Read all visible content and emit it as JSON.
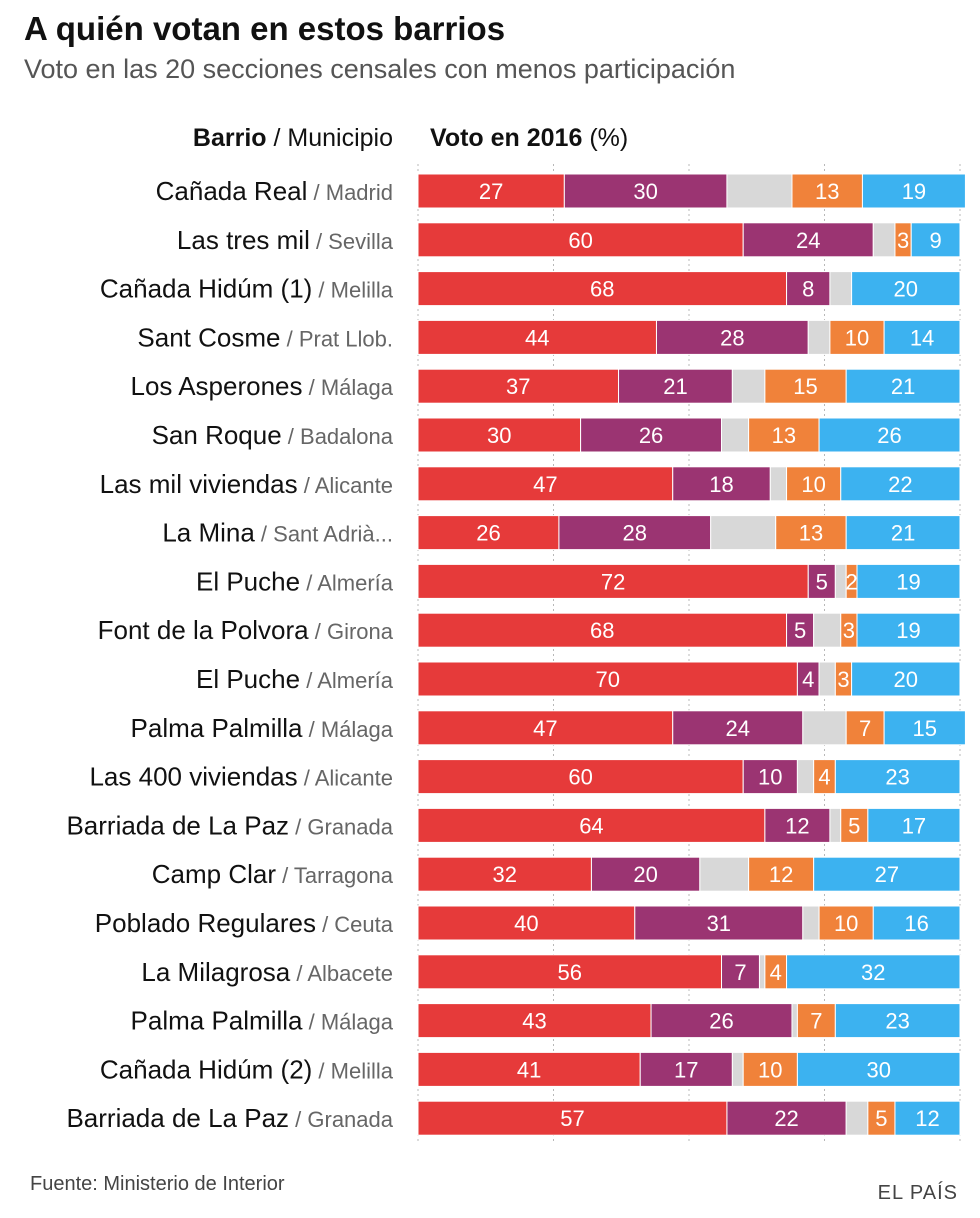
{
  "header": {
    "title": "A quién votan en estos barrios",
    "subtitle": "Voto en las 20 secciones censales con menos participación",
    "col_left_bold": "Barrio",
    "col_left_rest": " / Municipio",
    "col_right_bold": "Voto en 2016",
    "col_right_rest": " (%)"
  },
  "footer": {
    "source": "Fuente: Ministerio de Interior",
    "brand": "EL PAÍS"
  },
  "colors": {
    "seg1": "#e63a3a",
    "seg2": "#9b3472",
    "seg3": "#d8d8d8",
    "seg4": "#f0823a",
    "seg5": "#3cb2f0",
    "grid": "#b8b8b8"
  },
  "chart_data": {
    "type": "bar",
    "orientation": "horizontal",
    "stacked": true,
    "xlim": [
      0,
      100
    ],
    "categories": [
      {
        "barrio": "Cañada Real",
        "municipio": "Madrid"
      },
      {
        "barrio": "Las tres mil",
        "municipio": "Sevilla"
      },
      {
        "barrio": "Cañada Hidúm (1)",
        "municipio": "Melilla"
      },
      {
        "barrio": "Sant Cosme",
        "municipio": "Prat Llob."
      },
      {
        "barrio": "Los Asperones",
        "municipio": "Málaga"
      },
      {
        "barrio": "San Roque",
        "municipio": "Badalona"
      },
      {
        "barrio": "Las mil viviendas",
        "municipio": "Alicante"
      },
      {
        "barrio": "La Mina",
        "municipio": "Sant Adrià..."
      },
      {
        "barrio": "El Puche",
        "municipio": "Almería"
      },
      {
        "barrio": "Font de la Polvora",
        "municipio": "Girona"
      },
      {
        "barrio": "El Puche",
        "municipio": "Almería"
      },
      {
        "barrio": "Palma Palmilla",
        "municipio": "Málaga"
      },
      {
        "barrio": "Las 400 viviendas",
        "municipio": "Alicante"
      },
      {
        "barrio": "Barriada de La Paz",
        "municipio": "Granada"
      },
      {
        "barrio": "Camp Clar",
        "municipio": "Tarragona"
      },
      {
        "barrio": "Poblado Regulares",
        "municipio": "Ceuta"
      },
      {
        "barrio": "La Milagrosa",
        "municipio": "Albacete"
      },
      {
        "barrio": "Palma Palmilla",
        "municipio": "Málaga"
      },
      {
        "barrio": "Cañada Hidúm (2)",
        "municipio": "Melilla"
      },
      {
        "barrio": "Barriada de La Paz",
        "municipio": "Granada"
      }
    ],
    "series": [
      {
        "values": [
          27,
          60,
          68,
          44,
          37,
          30,
          47,
          26,
          72,
          68,
          70,
          47,
          60,
          64,
          32,
          40,
          56,
          43,
          41,
          57
        ],
        "show_label": true
      },
      {
        "values": [
          30,
          24,
          8,
          28,
          21,
          26,
          18,
          28,
          5,
          5,
          4,
          24,
          10,
          12,
          20,
          31,
          7,
          26,
          17,
          22
        ],
        "show_label": true
      },
      {
        "values": [
          12,
          4,
          4,
          4,
          6,
          5,
          3,
          12,
          2,
          5,
          3,
          8,
          3,
          2,
          9,
          3,
          1,
          1,
          2,
          4
        ],
        "show_label": false
      },
      {
        "values": [
          13,
          3,
          0,
          10,
          15,
          13,
          10,
          13,
          2,
          3,
          3,
          7,
          4,
          5,
          12,
          10,
          4,
          7,
          10,
          5
        ],
        "show_label": true
      },
      {
        "values": [
          19,
          9,
          20,
          14,
          21,
          26,
          22,
          21,
          19,
          19,
          20,
          15,
          23,
          17,
          27,
          16,
          32,
          23,
          30,
          12
        ],
        "show_label": true
      }
    ],
    "grid": true
  }
}
